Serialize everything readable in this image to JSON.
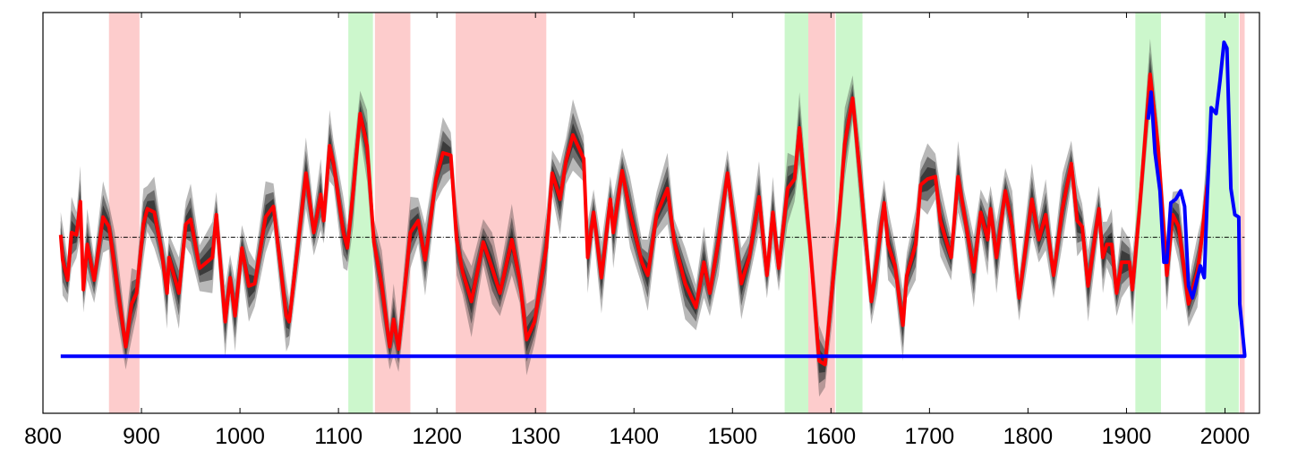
{
  "chart_data": {
    "type": "line",
    "title": "",
    "xlabel": "",
    "ylabel": "",
    "xlim": [
      800,
      2035
    ],
    "ylim": [
      -1.48,
      1.89
    ],
    "grid": false,
    "x_ticks": [
      "800",
      "900",
      "1000",
      "1100",
      "1200",
      "1300",
      "1400",
      "1500",
      "1600",
      "1700",
      "1800",
      "1900",
      "2000"
    ],
    "reference_line": {
      "value": 0,
      "style": "dash-dot",
      "color": "#000000"
    },
    "bands": [
      {
        "start": 867,
        "end": 898,
        "color": "#fdcccc"
      },
      {
        "start": 1110,
        "end": 1135,
        "color": "#ccf7cc"
      },
      {
        "start": 1137,
        "end": 1173,
        "color": "#fdcccc"
      },
      {
        "start": 1219,
        "end": 1311,
        "color": "#fdcccc"
      },
      {
        "start": 1553,
        "end": 1577,
        "color": "#ccf7cc"
      },
      {
        "start": 1577,
        "end": 1604,
        "color": "#fdcccc"
      },
      {
        "start": 1605,
        "end": 1632,
        "color": "#ccf7cc"
      },
      {
        "start": 1909,
        "end": 1935,
        "color": "#ccf7cc"
      },
      {
        "start": 1980,
        "end": 2014,
        "color": "#ccf7cc"
      },
      {
        "start": 2015,
        "end": 2020,
        "color": "#fdcccc"
      }
    ],
    "series": [
      {
        "color": "#ff0000",
        "uncertainty_color": "#333333",
        "points": [
          [
            818,
            0.02
          ],
          [
            820,
            -0.19
          ],
          [
            825,
            -0.36
          ],
          [
            829,
            0.04
          ],
          [
            834,
            0.02
          ],
          [
            838,
            0.3
          ],
          [
            841,
            -0.44
          ],
          [
            845,
            -0.06
          ],
          [
            852,
            -0.36
          ],
          [
            861,
            0.17
          ],
          [
            867,
            0.09
          ],
          [
            873,
            -0.26
          ],
          [
            884,
            -0.92
          ],
          [
            890,
            -0.56
          ],
          [
            895,
            -0.47
          ],
          [
            902,
            0.11
          ],
          [
            906,
            0.24
          ],
          [
            913,
            0.21
          ],
          [
            920,
            -0.09
          ],
          [
            926,
            -0.47
          ],
          [
            928,
            -0.17
          ],
          [
            938,
            -0.47
          ],
          [
            945,
            0.11
          ],
          [
            950,
            0.15
          ],
          [
            959,
            -0.26
          ],
          [
            972,
            -0.17
          ],
          [
            976,
            0.19
          ],
          [
            985,
            -0.71
          ],
          [
            990,
            -0.34
          ],
          [
            995,
            -0.66
          ],
          [
            1002,
            -0.09
          ],
          [
            1009,
            -0.41
          ],
          [
            1015,
            -0.39
          ],
          [
            1026,
            0.17
          ],
          [
            1034,
            0.26
          ],
          [
            1047,
            -0.66
          ],
          [
            1050,
            -0.71
          ],
          [
            1067,
            0.54
          ],
          [
            1075,
            0.04
          ],
          [
            1082,
            0.36
          ],
          [
            1085,
            0.14
          ],
          [
            1091,
            0.77
          ],
          [
            1095,
            0.62
          ],
          [
            1105,
            0.04
          ],
          [
            1109,
            -0.09
          ],
          [
            1115,
            0.39
          ],
          [
            1122,
            1.04
          ],
          [
            1129,
            0.77
          ],
          [
            1136,
            -0.04
          ],
          [
            1144,
            -0.41
          ],
          [
            1152,
            -0.92
          ],
          [
            1156,
            -0.69
          ],
          [
            1161,
            -0.94
          ],
          [
            1173,
            0.04
          ],
          [
            1181,
            0.14
          ],
          [
            1188,
            -0.19
          ],
          [
            1199,
            0.49
          ],
          [
            1206,
            0.71
          ],
          [
            1214,
            0.69
          ],
          [
            1220,
            -0.02
          ],
          [
            1226,
            -0.29
          ],
          [
            1235,
            -0.54
          ],
          [
            1247,
            -0.04
          ],
          [
            1256,
            -0.26
          ],
          [
            1264,
            -0.47
          ],
          [
            1276,
            -0.02
          ],
          [
            1284,
            -0.36
          ],
          [
            1291,
            -0.86
          ],
          [
            1299,
            -0.71
          ],
          [
            1311,
            -0.09
          ],
          [
            1317,
            0.54
          ],
          [
            1325,
            0.32
          ],
          [
            1331,
            0.64
          ],
          [
            1338,
            0.86
          ],
          [
            1349,
            0.66
          ],
          [
            1353,
            -0.17
          ],
          [
            1359,
            0.21
          ],
          [
            1367,
            -0.34
          ],
          [
            1376,
            0.32
          ],
          [
            1379,
            0.04
          ],
          [
            1388,
            0.56
          ],
          [
            1396,
            0.21
          ],
          [
            1408,
            -0.21
          ],
          [
            1414,
            -0.32
          ],
          [
            1423,
            0.19
          ],
          [
            1434,
            0.41
          ],
          [
            1441,
            -0.04
          ],
          [
            1452,
            -0.39
          ],
          [
            1463,
            -0.59
          ],
          [
            1471,
            -0.21
          ],
          [
            1477,
            -0.47
          ],
          [
            1486,
            -0.02
          ],
          [
            1495,
            0.54
          ],
          [
            1509,
            -0.39
          ],
          [
            1517,
            -0.17
          ],
          [
            1527,
            0.34
          ],
          [
            1535,
            -0.32
          ],
          [
            1541,
            0.21
          ],
          [
            1547,
            -0.26
          ],
          [
            1556,
            0.41
          ],
          [
            1563,
            0.49
          ],
          [
            1568,
            0.92
          ],
          [
            1579,
            -0.09
          ],
          [
            1588,
            -1.04
          ],
          [
            1594,
            -1.07
          ],
          [
            1602,
            -0.36
          ],
          [
            1608,
            0.14
          ],
          [
            1614,
            0.79
          ],
          [
            1622,
            1.17
          ],
          [
            1632,
            0.29
          ],
          [
            1641,
            -0.54
          ],
          [
            1647,
            -0.17
          ],
          [
            1654,
            0.29
          ],
          [
            1658,
            -0.06
          ],
          [
            1665,
            -0.24
          ],
          [
            1673,
            -0.74
          ],
          [
            1677,
            -0.32
          ],
          [
            1686,
            -0.06
          ],
          [
            1691,
            0.44
          ],
          [
            1698,
            0.49
          ],
          [
            1706,
            0.51
          ],
          [
            1711,
            0.14
          ],
          [
            1722,
            -0.17
          ],
          [
            1729,
            0.51
          ],
          [
            1735,
            0.21
          ],
          [
            1745,
            -0.29
          ],
          [
            1752,
            0.21
          ],
          [
            1759,
            -0.02
          ],
          [
            1762,
            0.24
          ],
          [
            1768,
            -0.17
          ],
          [
            1777,
            0.39
          ],
          [
            1784,
            0.09
          ],
          [
            1791,
            -0.51
          ],
          [
            1804,
            0.32
          ],
          [
            1811,
            -0.02
          ],
          [
            1818,
            0.19
          ],
          [
            1826,
            -0.32
          ],
          [
            1835,
            0.24
          ],
          [
            1844,
            0.62
          ],
          [
            1850,
            0.14
          ],
          [
            1855,
            0.09
          ],
          [
            1861,
            -0.41
          ],
          [
            1872,
            0.24
          ],
          [
            1876,
            -0.17
          ],
          [
            1880,
            -0.06
          ],
          [
            1885,
            -0.06
          ],
          [
            1890,
            -0.47
          ],
          [
            1895,
            -0.21
          ],
          [
            1903,
            -0.21
          ],
          [
            1906,
            -0.44
          ],
          [
            1913,
            0.21
          ],
          [
            1924,
            1.37
          ],
          [
            1932,
            0.77
          ],
          [
            1941,
            -0.32
          ],
          [
            1947,
            0.19
          ],
          [
            1953,
            0.09
          ],
          [
            1963,
            -0.56
          ],
          [
            1972,
            -0.29
          ],
          [
            1976,
            -0.04
          ],
          [
            1982,
            0.44
          ]
        ]
      },
      {
        "color": "#0000ff",
        "points": [
          [
            1922,
            0.99
          ],
          [
            1925,
            1.22
          ],
          [
            1929,
            0.71
          ],
          [
            1934,
            0.39
          ],
          [
            1938,
            -0.21
          ],
          [
            1941,
            -0.21
          ],
          [
            1945,
            0.29
          ],
          [
            1950,
            0.32
          ],
          [
            1955,
            0.39
          ],
          [
            1959,
            0.26
          ],
          [
            1963,
            -0.41
          ],
          [
            1967,
            -0.51
          ],
          [
            1975,
            -0.24
          ],
          [
            1979,
            -0.34
          ],
          [
            1982,
            0.34
          ],
          [
            1986,
            1.09
          ],
          [
            1991,
            1.04
          ],
          [
            1995,
            1.32
          ],
          [
            1999,
            1.64
          ],
          [
            2002,
            1.59
          ],
          [
            2006,
            0.41
          ],
          [
            2010,
            0.19
          ],
          [
            2014,
            0.17
          ],
          [
            2015,
            -0.56
          ],
          [
            2020,
            -0.99
          ],
          [
            2020,
            -1.0
          ],
          [
            818,
            -1.0
          ]
        ]
      }
    ]
  }
}
